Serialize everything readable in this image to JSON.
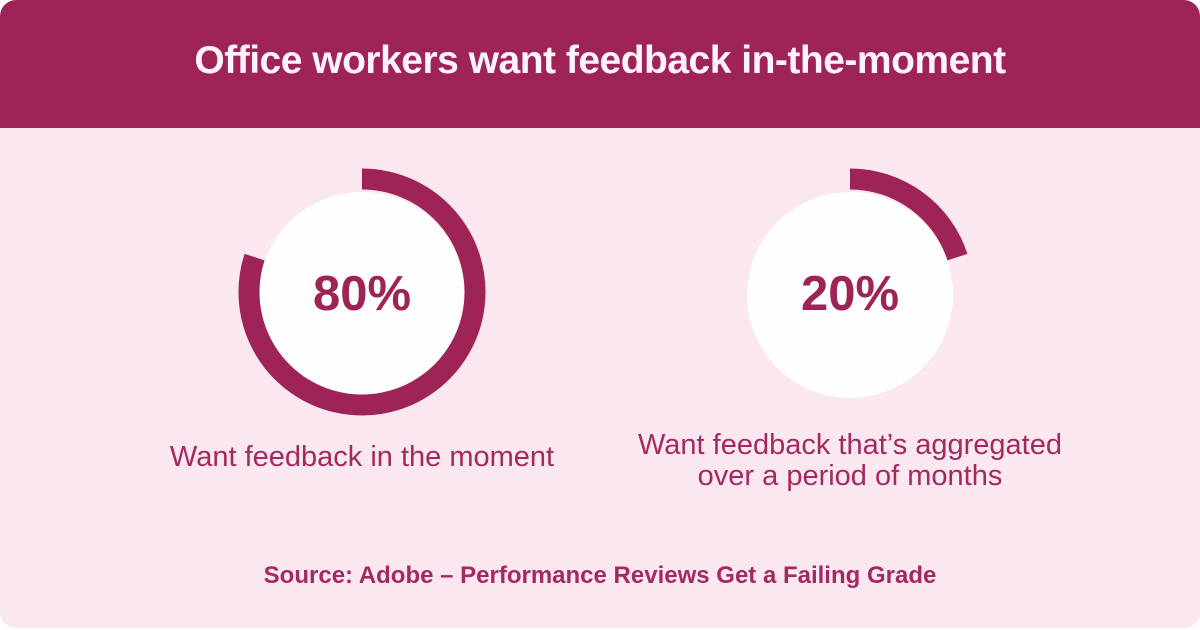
{
  "chart_data": {
    "type": "pie",
    "variant": "donut",
    "title": "Office workers want feedback in-the-moment",
    "unit": "%",
    "start_angle": "top",
    "direction": "clockwise",
    "legend_position": "below-each-donut",
    "series": [
      {
        "name": "in-the-moment",
        "value": 80,
        "display": "80%",
        "caption": "Want feedback in the moment"
      },
      {
        "name": "aggregated",
        "value": 20,
        "display": "20%",
        "caption": "Want feedback that’s aggregated\nover a period of months"
      }
    ],
    "source": "Source: Adobe – Performance Reviews Get a Failing Grade"
  },
  "colors": {
    "accent": "#9E2356",
    "body_bg": "#FBE7EF",
    "page_bg": "#FFFFFF",
    "title_color": "#FDF3F8",
    "caption_color": "#A32A60",
    "source_color": "#A42963",
    "hole_fill": "#FFFEFF"
  }
}
